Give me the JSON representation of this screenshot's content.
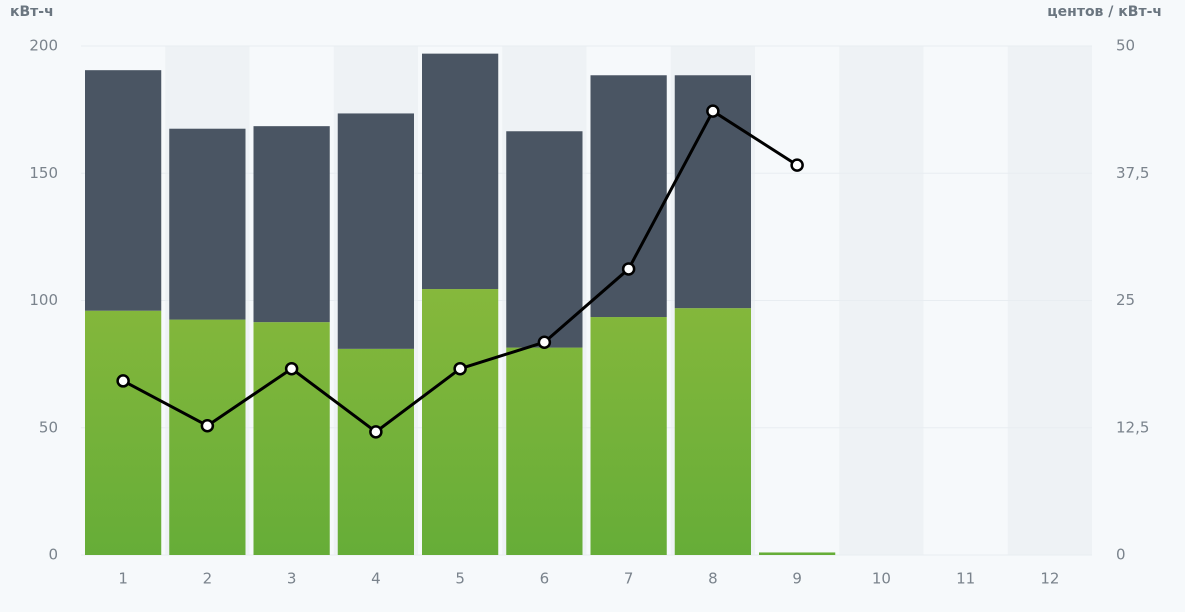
{
  "chart_data": {
    "type": "bar",
    "stacked": true,
    "y_label": "кВт-ч",
    "y2_label": "центов / кВт-ч",
    "categories": [
      "1",
      "2",
      "3",
      "4",
      "5",
      "6",
      "7",
      "8",
      "9",
      "10",
      "11",
      "12"
    ],
    "series": [
      {
        "type": "bar",
        "color": "#85b73b",
        "gradient": [
          "#a3c23f",
          "#66ad38"
        ],
        "values": [
          96,
          92.5,
          91.5,
          81,
          104.5,
          81.5,
          93.5,
          97,
          1,
          null,
          null,
          null
        ]
      },
      {
        "type": "bar",
        "color": "#4a5563",
        "values": [
          94.5,
          75,
          77,
          92.5,
          92.5,
          85,
          95,
          91.5,
          0,
          null,
          null,
          null
        ]
      },
      {
        "type": "line",
        "axis": "y2",
        "color": "#000000",
        "values": [
          17.1,
          12.7,
          18.3,
          12.1,
          18.3,
          20.9,
          28.1,
          43.6,
          38.3,
          null,
          null,
          null
        ]
      }
    ],
    "ylim": [
      0,
      200
    ],
    "yticks": [
      0,
      50,
      100,
      150,
      200
    ],
    "y2lim": [
      0,
      50
    ],
    "y2ticks": [
      0,
      {
        "value": 12.5,
        "label": "12,5"
      },
      25,
      {
        "value": 37.5,
        "label": "37,5"
      },
      50
    ],
    "grid": true
  }
}
